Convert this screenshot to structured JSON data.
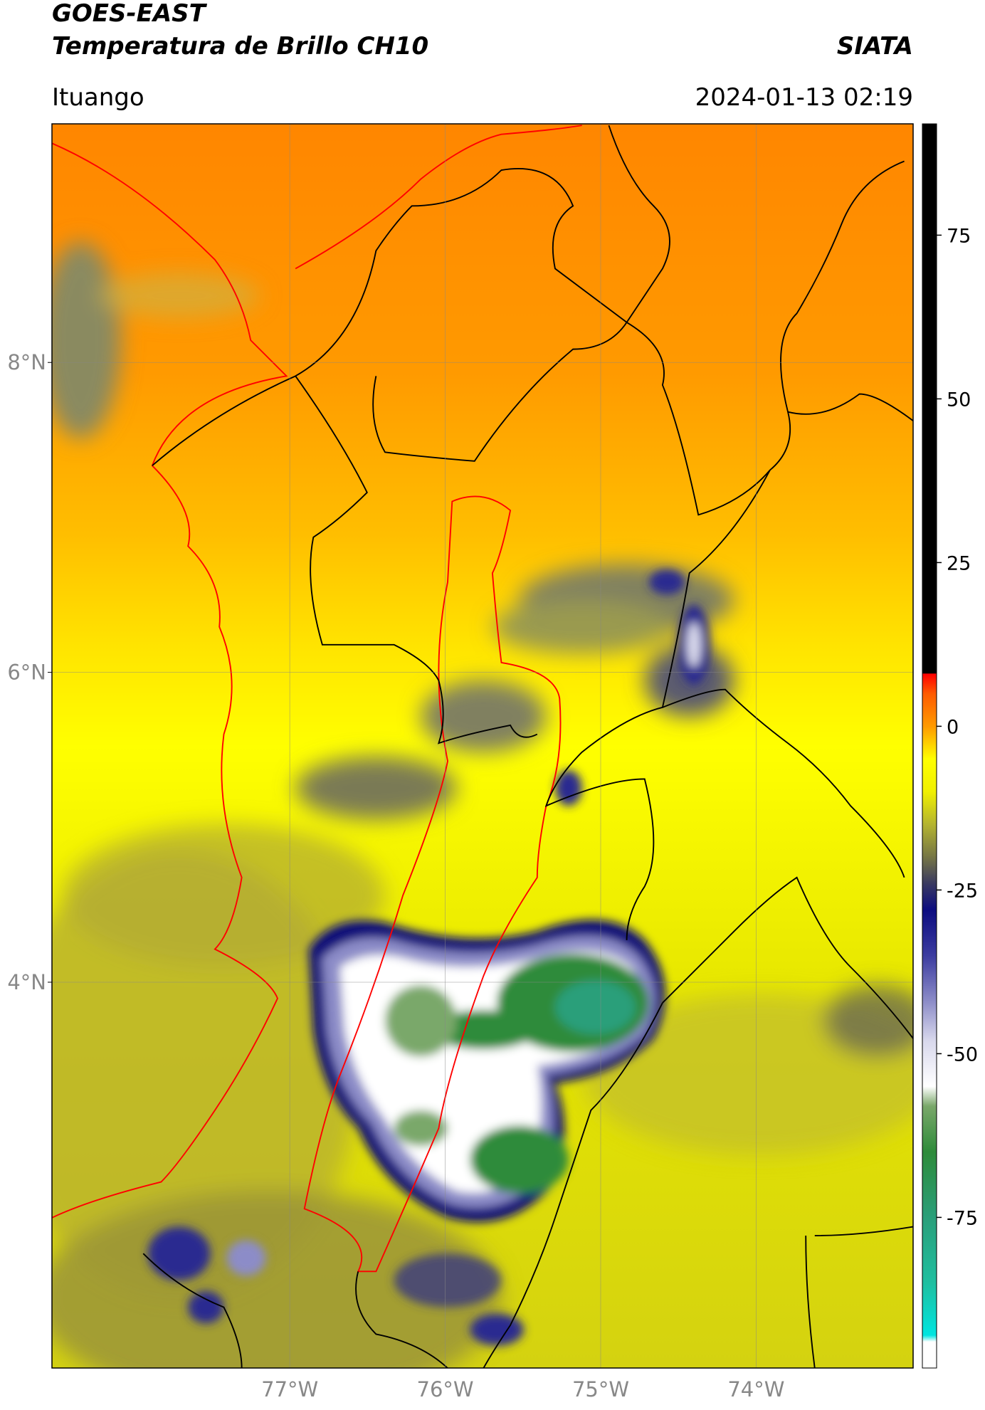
{
  "header": {
    "title": "GOES-EAST",
    "subtitle": "Temperatura de Brillo CH10",
    "agency": "SIATA",
    "location": "Ituango",
    "timestamp": "2024-01-13 02:19"
  },
  "map": {
    "lonlim": [
      -78.53,
      -72.99
    ],
    "latlim": [
      1.51,
      9.54
    ],
    "lonticks": [
      {
        "value": -77,
        "label": "77°W"
      },
      {
        "value": -76,
        "label": "76°W"
      },
      {
        "value": -75,
        "label": "75°W"
      },
      {
        "value": -74,
        "label": "74°W"
      }
    ],
    "latticks": [
      {
        "value": 8,
        "label": "8°N"
      },
      {
        "value": 6,
        "label": "6°N"
      },
      {
        "value": 4,
        "label": "4°N"
      }
    ],
    "grid": true
  },
  "colorbar": {
    "lim": [
      -98,
      92
    ],
    "ticks": [
      75,
      50,
      25,
      0,
      -25,
      -50,
      -75
    ],
    "stops": [
      {
        "value": -98,
        "color": "#ffffff"
      },
      {
        "value": -94,
        "color": "#ffffff"
      },
      {
        "value": -93,
        "color": "#00e5e0"
      },
      {
        "value": -85,
        "color": "#1fbfa0"
      },
      {
        "value": -75,
        "color": "#2a9f7a"
      },
      {
        "value": -65,
        "color": "#2e8b3a"
      },
      {
        "value": -58,
        "color": "#7aa86a"
      },
      {
        "value": -55,
        "color": "#ffffff"
      },
      {
        "value": -48,
        "color": "#d8d8ec"
      },
      {
        "value": -42,
        "color": "#8c8cc8"
      },
      {
        "value": -35,
        "color": "#3c3ca0"
      },
      {
        "value": -28,
        "color": "#0c0c80"
      },
      {
        "value": -24,
        "color": "#3a3a60"
      },
      {
        "value": -20,
        "color": "#757545"
      },
      {
        "value": -15,
        "color": "#b4b430"
      },
      {
        "value": -10,
        "color": "#f0f000"
      },
      {
        "value": -5,
        "color": "#ffff00"
      },
      {
        "value": 0,
        "color": "#ff9a00"
      },
      {
        "value": 5,
        "color": "#ff5a00"
      },
      {
        "value": 8,
        "color": "#ff0000"
      },
      {
        "value": 8.1,
        "color": "#000000"
      },
      {
        "value": 92,
        "color": "#000000"
      }
    ]
  }
}
